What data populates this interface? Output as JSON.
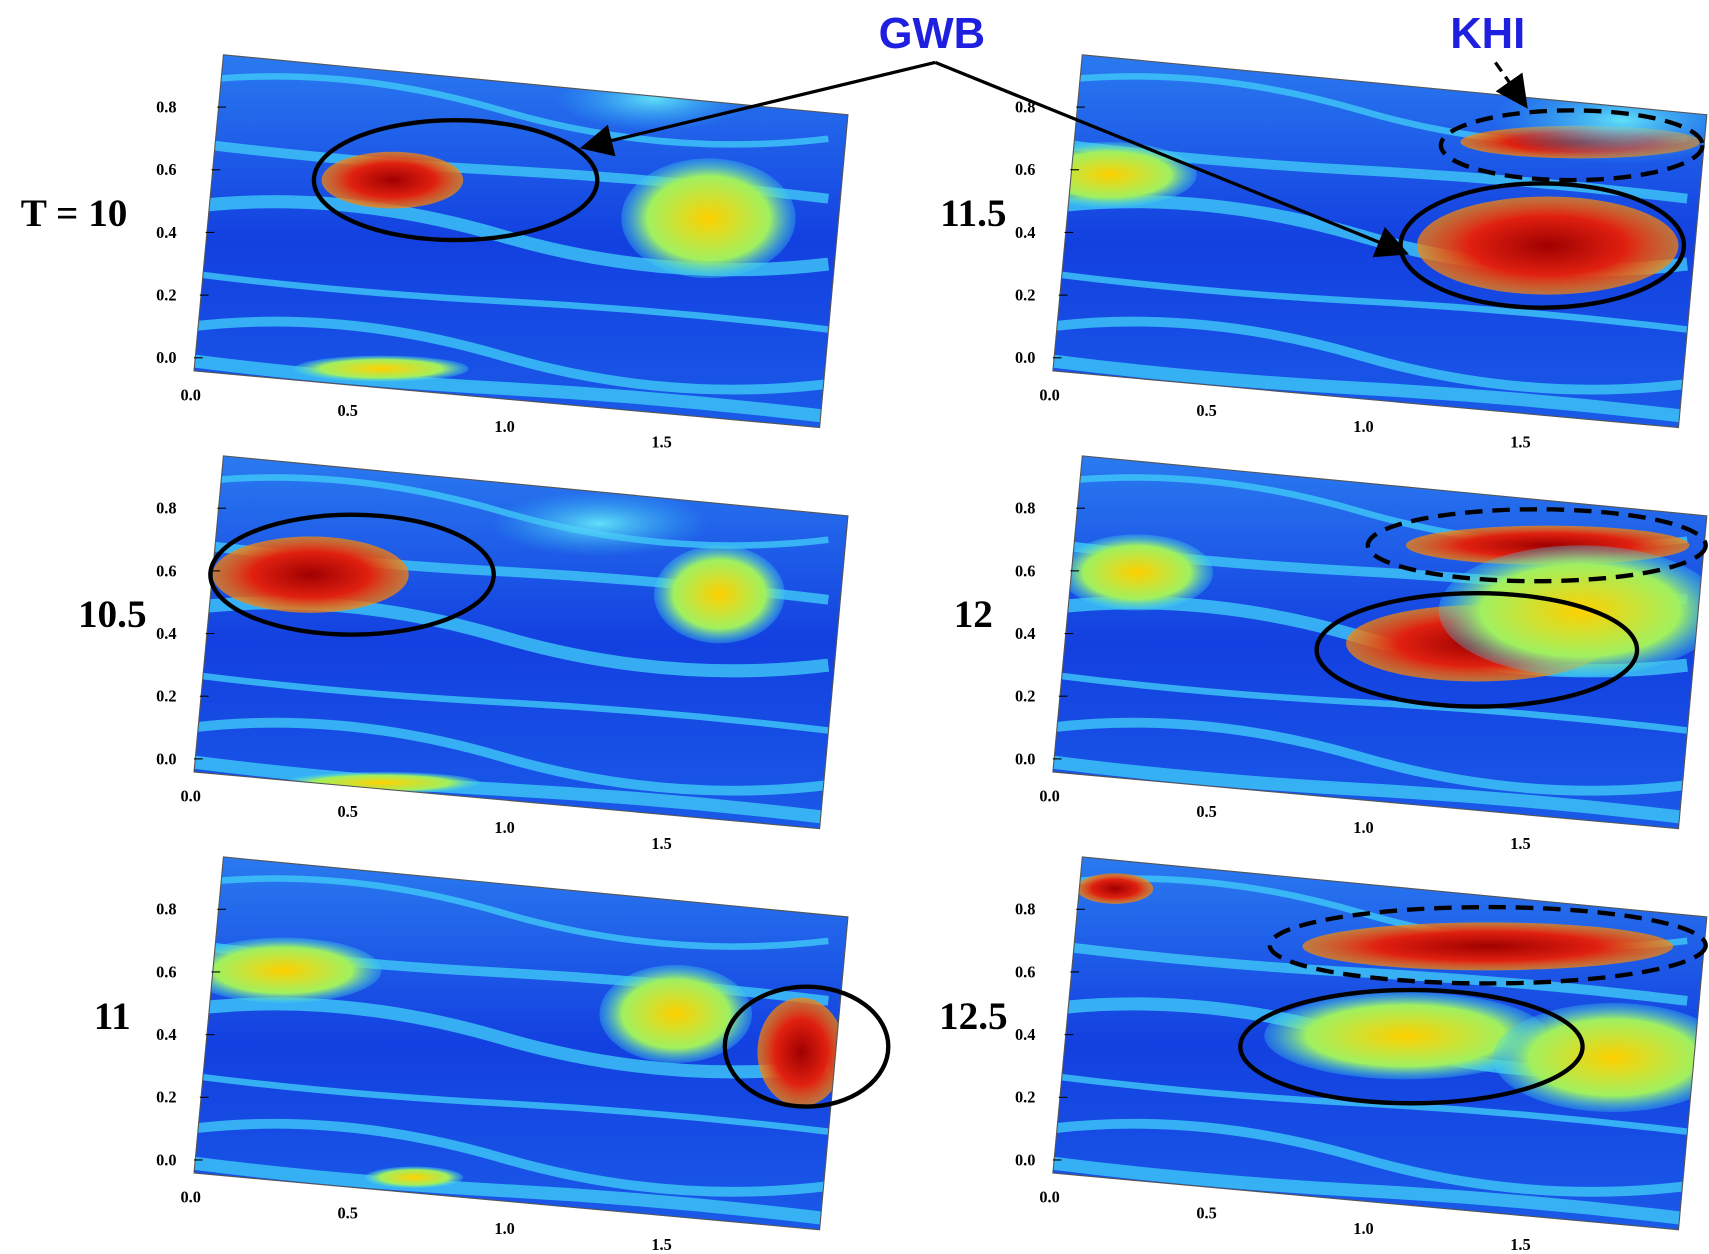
{
  "annotations": {
    "gwb": "GWB",
    "khi": "KHI"
  },
  "axes": {
    "yticks": [
      "0.0",
      "0.2",
      "0.4",
      "0.6",
      "0.8"
    ],
    "xticks": [
      "0.0",
      "0.5",
      "1.0",
      "1.5"
    ]
  },
  "panels": [
    {
      "time": "T = 10"
    },
    {
      "time": "10.5"
    },
    {
      "time": "11"
    },
    {
      "time": "11.5"
    },
    {
      "time": "12"
    },
    {
      "time": "12.5"
    }
  ]
}
